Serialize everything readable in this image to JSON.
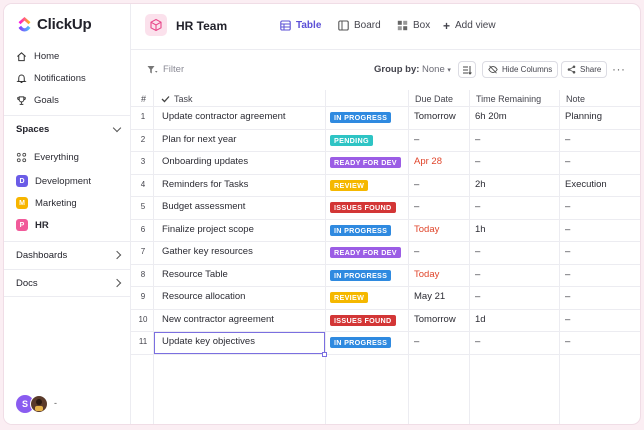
{
  "sidebar": {
    "logo_text": "ClickUp",
    "nav": [
      {
        "label": "Home",
        "icon": "home-icon"
      },
      {
        "label": "Notifications",
        "icon": "bell-icon"
      },
      {
        "label": "Goals",
        "icon": "trophy-icon"
      }
    ],
    "spaces_title": "Spaces",
    "everything_label": "Everything",
    "spaces": [
      {
        "letter": "D",
        "label": "Development",
        "color": "#6b5ce7"
      },
      {
        "letter": "M",
        "label": "Marketing",
        "color": "#f7b500"
      },
      {
        "letter": "P",
        "label": "HR",
        "color": "#f15a9a"
      }
    ],
    "dashboards_label": "Dashboards",
    "docs_label": "Docs",
    "avatar_letter": "S",
    "avatar_dash": "-"
  },
  "header": {
    "team_name": "HR Team",
    "views": [
      {
        "label": "Table",
        "icon": "table-icon",
        "active": true
      },
      {
        "label": "Board",
        "icon": "board-icon",
        "active": false
      },
      {
        "label": "Box",
        "icon": "box-icon",
        "active": false
      },
      {
        "label": "Add view",
        "icon": "plus-icon",
        "active": false
      }
    ]
  },
  "toolbar": {
    "filter_label": "Filter",
    "groupby_label": "Group by:",
    "groupby_value": "None",
    "hide_columns_label": "Hide Columns",
    "share_label": "Share"
  },
  "table": {
    "columns": {
      "num": "#",
      "task": "Task",
      "status": "",
      "due": "Due Date",
      "time": "Time Remaining",
      "note": "Note"
    },
    "rows": [
      {
        "n": "1",
        "task": "Update contractor agreement",
        "status": "IN PROGRESS",
        "status_color": "#2f8ae0",
        "due": "Tomorrow",
        "due_red": false,
        "time": "6h 20m",
        "note": "Planning"
      },
      {
        "n": "2",
        "task": "Plan for next year",
        "status": "PENDING",
        "status_color": "#2ec4c4",
        "due": "–",
        "due_red": false,
        "time": "–",
        "note": "–"
      },
      {
        "n": "3",
        "task": "Onboarding updates",
        "status": "READY FOR DEV",
        "status_color": "#9b5de5",
        "due": "Apr 28",
        "due_red": true,
        "time": "–",
        "note": "–"
      },
      {
        "n": "4",
        "task": "Reminders for Tasks",
        "status": "REVIEW",
        "status_color": "#f5b800",
        "due": "–",
        "due_red": false,
        "time": "2h",
        "note": "Execution"
      },
      {
        "n": "5",
        "task": "Budget assessment",
        "status": "ISSUES FOUND",
        "status_color": "#d33636",
        "due": "–",
        "due_red": false,
        "time": "–",
        "note": "–"
      },
      {
        "n": "6",
        "task": "Finalize project scope",
        "status": "IN PROGRESS",
        "status_color": "#2f8ae0",
        "due": "Today",
        "due_red": true,
        "time": "1h",
        "note": "–"
      },
      {
        "n": "7",
        "task": "Gather key resources",
        "status": "READY FOR DEV",
        "status_color": "#9b5de5",
        "due": "–",
        "due_red": false,
        "time": "–",
        "note": "–"
      },
      {
        "n": "8",
        "task": "Resource Table",
        "status": "IN PROGRESS",
        "status_color": "#2f8ae0",
        "due": "Today",
        "due_red": true,
        "time": "–",
        "note": "–"
      },
      {
        "n": "9",
        "task": "Resource allocation",
        "status": "REVIEW",
        "status_color": "#f5b800",
        "due": "May 21",
        "due_red": false,
        "time": "–",
        "note": "–"
      },
      {
        "n": "10",
        "task": "New contractor agreement",
        "status": "ISSUES FOUND",
        "status_color": "#d33636",
        "due": "Tomorrow",
        "due_red": false,
        "time": "1d",
        "note": "–"
      },
      {
        "n": "11",
        "task": "Update key objectives",
        "status": "IN PROGRESS",
        "status_color": "#2f8ae0",
        "due": "–",
        "due_red": false,
        "time": "–",
        "note": "–"
      }
    ]
  },
  "colors": {
    "accent": "#5b4fd6",
    "due_red": "#e0452b"
  }
}
